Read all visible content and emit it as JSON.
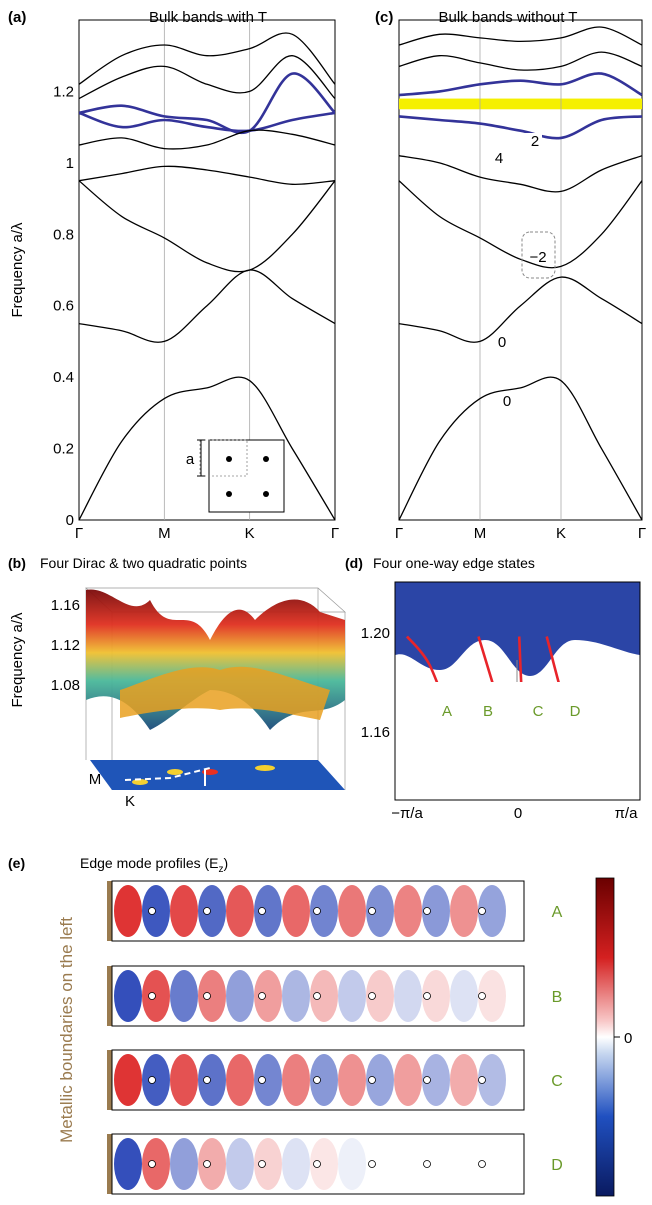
{
  "panels": {
    "a": {
      "tag": "(a)",
      "title": "Bulk bands with T"
    },
    "c": {
      "tag": "(c)",
      "title": "Bulk bands without T"
    },
    "b": {
      "tag": "(b)",
      "title": "Four Dirac & two quadratic points"
    },
    "d": {
      "tag": "(d)",
      "title": "Four one-way edge states"
    },
    "e": {
      "tag": "(e)",
      "title": "Edge mode profiles  (E",
      "title_sub": "z",
      "title_end": ")"
    }
  },
  "colors": {
    "band": "#000000",
    "highlight": "#333399",
    "gap": "#f5f000",
    "dirac_fill": "#2b45a6",
    "edge_state": "#e8242a",
    "label_green": "#6a9a2a",
    "metal": "#9a7b4f"
  },
  "chart_data": [
    {
      "id": "a",
      "type": "line",
      "title": "Bulk bands with T",
      "ylabel": "Frequency a/λ",
      "ylim": [
        0,
        1.4
      ],
      "yticks": [
        "0",
        "0.2",
        "0.4",
        "0.6",
        "0.8",
        "1",
        "1.2"
      ],
      "ytick_values": [
        0,
        0.2,
        0.4,
        0.6,
        0.8,
        1.0,
        1.2
      ],
      "xticks": [
        "Γ",
        "M",
        "K",
        "Γ"
      ],
      "inset_label": "a",
      "series": [
        {
          "x": [
            0,
            0.5,
            1,
            1.5,
            2,
            2.5,
            3
          ],
          "y": [
            0,
            0.22,
            0.34,
            0.37,
            0.39,
            0.2,
            0
          ]
        },
        {
          "x": [
            0,
            0.5,
            1,
            1.5,
            2,
            2.5,
            3
          ],
          "y": [
            0.55,
            0.53,
            0.5,
            0.6,
            0.7,
            0.62,
            0.55
          ]
        },
        {
          "x": [
            0,
            0.5,
            1,
            1.5,
            2,
            2.5,
            3
          ],
          "y": [
            0.95,
            0.85,
            0.79,
            0.72,
            0.7,
            0.8,
            0.95
          ]
        },
        {
          "x": [
            0,
            0.5,
            1,
            1.5,
            2,
            2.5,
            3
          ],
          "y": [
            0.95,
            0.97,
            0.99,
            0.98,
            0.96,
            0.94,
            0.95
          ]
        },
        {
          "x": [
            0,
            0.5,
            1,
            1.5,
            2,
            2.5,
            3
          ],
          "y": [
            1.14,
            1.1,
            1.12,
            1.1,
            1.09,
            1.12,
            1.14
          ],
          "highlight": true
        },
        {
          "x": [
            0,
            0.5,
            1,
            1.5,
            2,
            2.5,
            3
          ],
          "y": [
            1.14,
            1.16,
            1.13,
            1.12,
            1.09,
            1.25,
            1.14
          ],
          "highlight": true
        },
        {
          "x": [
            0,
            0.5,
            1,
            1.5,
            2,
            2.5,
            3
          ],
          "y": [
            1.05,
            1.07,
            1.04,
            1.05,
            1.09,
            1.08,
            1.05
          ]
        },
        {
          "x": [
            0,
            0.5,
            1,
            1.5,
            2,
            2.5,
            3
          ],
          "y": [
            1.18,
            1.24,
            1.27,
            1.22,
            1.2,
            1.3,
            1.18
          ]
        },
        {
          "x": [
            0,
            0.5,
            1,
            1.5,
            2,
            2.5,
            3
          ],
          "y": [
            1.22,
            1.3,
            1.33,
            1.3,
            1.32,
            1.36,
            1.22
          ]
        }
      ]
    },
    {
      "id": "c",
      "type": "line",
      "title": "Bulk bands without T",
      "ylim": [
        0,
        1.4
      ],
      "xticks": [
        "Γ",
        "M",
        "K",
        "Γ"
      ],
      "gap_band": [
        1.15,
        1.18
      ],
      "chern_labels": [
        "2",
        "4",
        "−2",
        "0",
        "0"
      ],
      "series": [
        {
          "x": [
            0,
            0.5,
            1,
            1.5,
            2,
            2.5,
            3
          ],
          "y": [
            0,
            0.22,
            0.34,
            0.37,
            0.39,
            0.2,
            0
          ]
        },
        {
          "x": [
            0,
            0.5,
            1,
            1.5,
            2,
            2.5,
            3
          ],
          "y": [
            0.55,
            0.53,
            0.5,
            0.6,
            0.68,
            0.62,
            0.55
          ]
        },
        {
          "x": [
            0,
            0.5,
            1,
            1.5,
            2,
            2.5,
            3
          ],
          "y": [
            0.95,
            0.85,
            0.79,
            0.73,
            0.71,
            0.8,
            0.95
          ]
        },
        {
          "x": [
            0,
            0.5,
            1,
            1.5,
            2,
            2.5,
            3
          ],
          "y": [
            1.02,
            1.0,
            0.96,
            0.94,
            0.92,
            0.98,
            1.02
          ]
        },
        {
          "x": [
            0,
            0.5,
            1,
            1.5,
            2,
            2.5,
            3
          ],
          "y": [
            1.13,
            1.12,
            1.11,
            1.09,
            1.07,
            1.12,
            1.13
          ],
          "highlight": true
        },
        {
          "x": [
            0,
            0.5,
            1,
            1.5,
            2,
            2.5,
            3
          ],
          "y": [
            1.19,
            1.2,
            1.22,
            1.23,
            1.22,
            1.25,
            1.19
          ],
          "highlight": true
        },
        {
          "x": [
            0,
            0.5,
            1,
            1.5,
            2,
            2.5,
            3
          ],
          "y": [
            1.27,
            1.3,
            1.28,
            1.26,
            1.27,
            1.31,
            1.27
          ]
        },
        {
          "x": [
            0,
            0.5,
            1,
            1.5,
            2,
            2.5,
            3
          ],
          "y": [
            1.33,
            1.36,
            1.35,
            1.34,
            1.35,
            1.38,
            1.33
          ]
        }
      ]
    },
    {
      "id": "b",
      "type": "surface",
      "ylabel": "Frequency a/λ",
      "zticks": [
        "1.16",
        "1.12",
        "1.08"
      ],
      "point_labels": [
        "M",
        "K"
      ]
    },
    {
      "id": "d",
      "type": "line",
      "ylim": [
        1.13,
        1.21
      ],
      "yticks": [
        "1.20",
        "1.16"
      ],
      "ytick_values": [
        1.2,
        1.16
      ],
      "xticks": [
        "−π/a",
        "0",
        "π/a"
      ],
      "xtick_values": [
        -1,
        0,
        1
      ],
      "dashed_level": 1.165,
      "series": [
        {
          "name": "A",
          "x": [
            -1.0,
            -0.8,
            -0.6,
            -0.4,
            -0.3
          ],
          "y": [
            1.19,
            1.18,
            1.16,
            1.145,
            1.14
          ]
        },
        {
          "name": "B",
          "x": [
            -0.35,
            -0.2,
            -0.05,
            0.05
          ],
          "y": [
            1.19,
            1.17,
            1.15,
            1.14
          ]
        },
        {
          "name": "C",
          "x": [
            0.02,
            0.05,
            0.1,
            0.2
          ],
          "y": [
            1.19,
            1.165,
            1.15,
            1.145
          ]
        },
        {
          "name": "D",
          "x": [
            0.27,
            0.4,
            0.55,
            0.75
          ],
          "y": [
            1.19,
            1.17,
            1.15,
            1.142
          ]
        }
      ],
      "state_labels": [
        "A",
        "B",
        "C",
        "D"
      ]
    }
  ],
  "profiles": {
    "side_label": "Metallic boundaries on the left",
    "rows": [
      "A",
      "B",
      "C",
      "D"
    ],
    "colorbar_label": "0"
  }
}
